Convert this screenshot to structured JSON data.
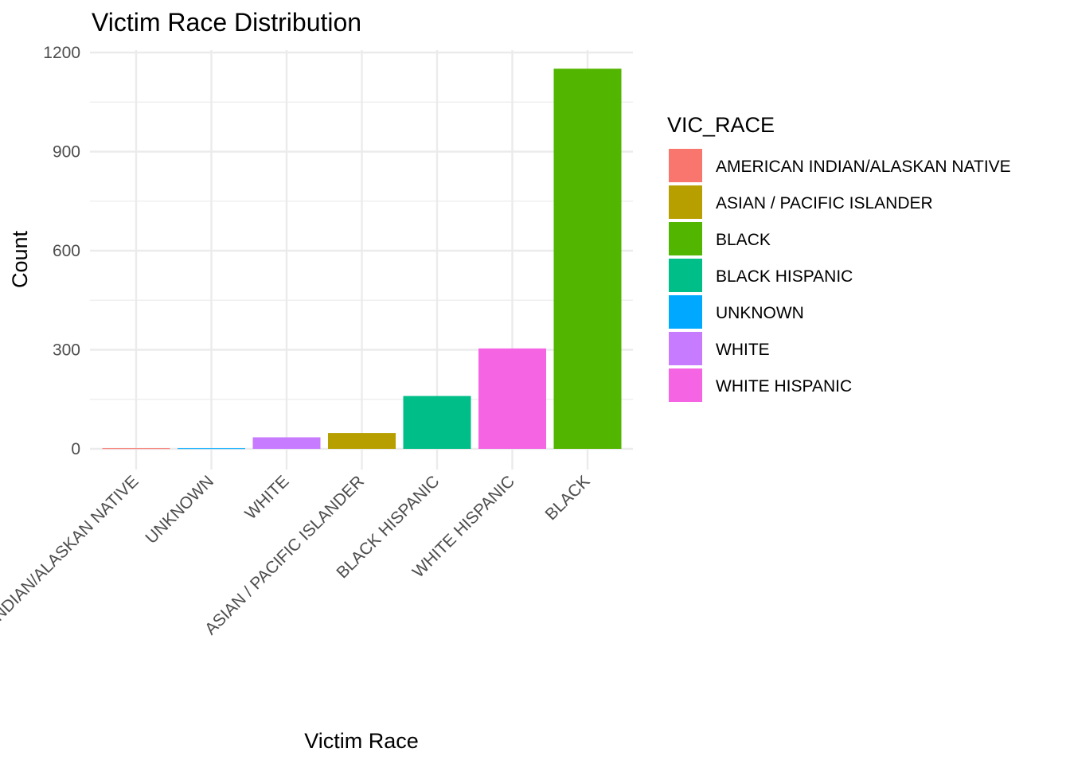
{
  "chart_data": {
    "type": "bar",
    "title": "Victim Race Distribution",
    "xlabel": "Victim Race",
    "ylabel": "Count",
    "categories": [
      "AMERICAN INDIAN/ALASKAN NATIVE",
      "UNKNOWN",
      "WHITE",
      "ASIAN / PACIFIC ISLANDER",
      "BLACK HISPANIC",
      "WHITE HISPANIC",
      "BLACK"
    ],
    "values": [
      2,
      2,
      35,
      48,
      160,
      304,
      1151
    ],
    "colors": [
      "#F8766D",
      "#00A9FF",
      "#C77CFF",
      "#B79F00",
      "#00BE87",
      "#F564E3",
      "#52B600"
    ],
    "ylim": [
      0,
      1200
    ],
    "yticks": [
      0,
      300,
      600,
      900,
      1200
    ],
    "grid": true,
    "legend": {
      "title": "VIC_RACE",
      "position": "right",
      "items": [
        {
          "label": "AMERICAN INDIAN/ALASKAN NATIVE",
          "color": "#F8766D"
        },
        {
          "label": "ASIAN / PACIFIC ISLANDER",
          "color": "#B79F00"
        },
        {
          "label": "BLACK",
          "color": "#52B600"
        },
        {
          "label": "BLACK HISPANIC",
          "color": "#00BE87"
        },
        {
          "label": "UNKNOWN",
          "color": "#00A9FF"
        },
        {
          "label": "WHITE",
          "color": "#C77CFF"
        },
        {
          "label": "WHITE HISPANIC",
          "color": "#F564E3"
        }
      ]
    }
  }
}
